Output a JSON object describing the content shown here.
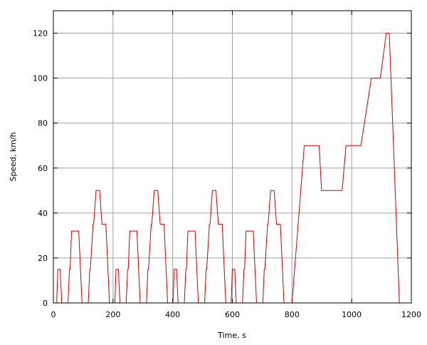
{
  "chart_data": {
    "type": "line",
    "x_label": "Time, s",
    "y_label": "Speed, km/h",
    "xlim": [
      0,
      1200
    ],
    "xticks": [
      0,
      200,
      400,
      600,
      800,
      1000,
      1200
    ],
    "ylim": [
      0,
      130
    ],
    "yticks": [
      0,
      20,
      40,
      60,
      80,
      100,
      120
    ],
    "grid": true,
    "series": [
      {
        "color": "#cc0000",
        "x": [
          0,
          11,
          15,
          23,
          28,
          49,
          54,
          56,
          61,
          85,
          96,
          117,
          122,
          124,
          133,
          135,
          143,
          155,
          163,
          176,
          188,
          195,
          206,
          210,
          218,
          223,
          244,
          249,
          251,
          256,
          280,
          291,
          312,
          317,
          319,
          328,
          330,
          338,
          350,
          358,
          371,
          383,
          390,
          401,
          405,
          413,
          418,
          439,
          444,
          446,
          451,
          475,
          486,
          507,
          512,
          514,
          523,
          525,
          533,
          545,
          553,
          566,
          578,
          585,
          596,
          600,
          608,
          613,
          634,
          639,
          641,
          646,
          670,
          681,
          702,
          707,
          709,
          718,
          720,
          728,
          740,
          748,
          761,
          773,
          780,
          800,
          841,
          891,
          899,
          968,
          981,
          1031,
          1066,
          1096,
          1116,
          1126,
          1160,
          1180
        ],
        "values": [
          0,
          0,
          15,
          15,
          0,
          0,
          15,
          15,
          32,
          32,
          0,
          0,
          15,
          15,
          35,
          35,
          50,
          50,
          35,
          35,
          0,
          0,
          0,
          15,
          15,
          0,
          0,
          15,
          15,
          32,
          32,
          0,
          0,
          15,
          15,
          35,
          35,
          50,
          50,
          35,
          35,
          0,
          0,
          0,
          15,
          15,
          0,
          0,
          15,
          15,
          32,
          32,
          0,
          0,
          15,
          15,
          35,
          35,
          50,
          50,
          35,
          35,
          0,
          0,
          0,
          15,
          15,
          0,
          0,
          15,
          15,
          32,
          32,
          0,
          0,
          15,
          15,
          35,
          35,
          50,
          50,
          35,
          35,
          0,
          0,
          0,
          70,
          70,
          50,
          50,
          70,
          70,
          100,
          100,
          120,
          120,
          0,
          0
        ]
      }
    ]
  }
}
